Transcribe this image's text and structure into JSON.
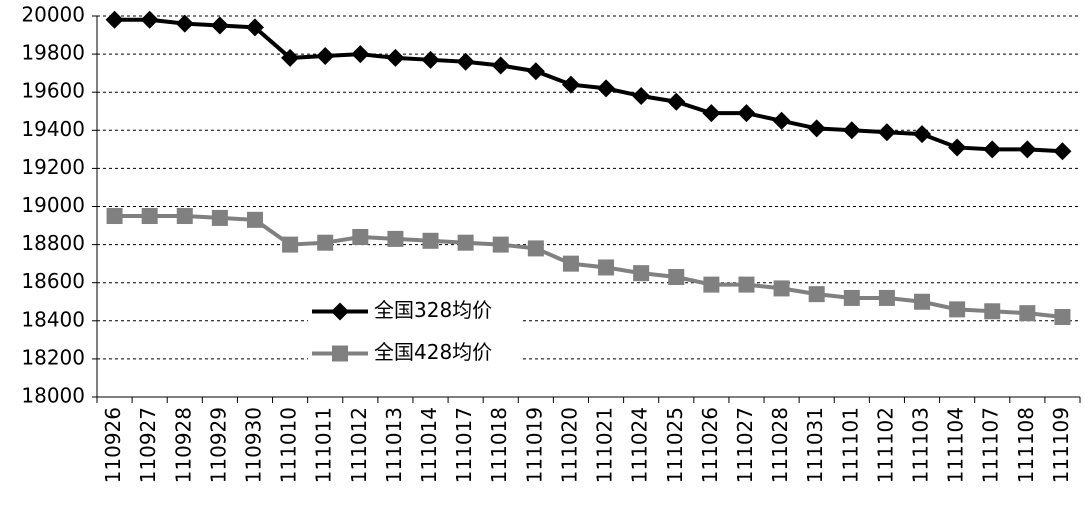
{
  "chart_data": {
    "type": "line",
    "categories": [
      "110926",
      "110927",
      "110928",
      "110929",
      "110930",
      "111010",
      "111011",
      "111012",
      "111013",
      "111014",
      "111017",
      "111018",
      "111019",
      "111020",
      "111021",
      "111024",
      "111025",
      "111026",
      "111027",
      "111028",
      "111031",
      "111101",
      "111102",
      "111103",
      "111104",
      "111107",
      "111108",
      "111109"
    ],
    "series": [
      {
        "name": "全国328均价",
        "color": "#000000",
        "marker": "diamond",
        "values": [
          19980,
          19980,
          19960,
          19950,
          19940,
          19780,
          19790,
          19800,
          19780,
          19770,
          19760,
          19740,
          19710,
          19640,
          19620,
          19580,
          19550,
          19490,
          19490,
          19450,
          19410,
          19400,
          19390,
          19380,
          19310,
          19300,
          19300,
          19290
        ]
      },
      {
        "name": "全国428均价",
        "color": "#808080",
        "marker": "square",
        "values": [
          18950,
          18950,
          18950,
          18940,
          18930,
          18800,
          18810,
          18840,
          18830,
          18820,
          18810,
          18800,
          18780,
          18700,
          18680,
          18650,
          18630,
          18590,
          18590,
          18570,
          18540,
          18520,
          18520,
          18500,
          18460,
          18450,
          18440,
          18420
        ]
      }
    ],
    "ylim": [
      18000,
      20000
    ],
    "yticks": [
      18000,
      18200,
      18400,
      18600,
      18800,
      19000,
      19200,
      19400,
      19600,
      19800,
      20000
    ],
    "grid": true,
    "legend": "middle-left"
  }
}
